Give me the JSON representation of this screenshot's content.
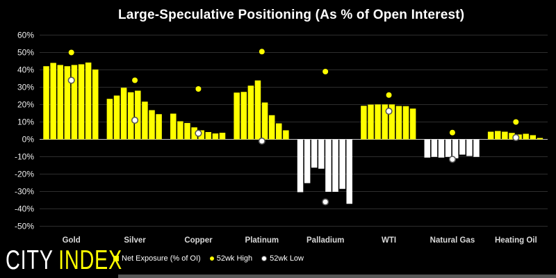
{
  "title": "Large-Speculative Positioning (As % of Open Interest)",
  "logo": {
    "city": "CITY",
    "index": "INDEX"
  },
  "legend": [
    {
      "label": "Net Exposure (% of OI)",
      "marker": "square",
      "color": "#ffff00"
    },
    {
      "label": "52wk High",
      "marker": "circle",
      "color": "#ffff00"
    },
    {
      "label": "52wk Low",
      "marker": "circle",
      "color": "#ffffff"
    }
  ],
  "colors": {
    "background": "#000000",
    "bar_positive": "#ffff00",
    "bar_negative": "#ffffff",
    "high_marker": "#ffff00",
    "low_marker_fill": "#ffffff",
    "low_marker_ring": "#555555",
    "grid": "#2e2e2e",
    "zero_line": "#c8c8c8",
    "tick_text": "#ededed",
    "category_text": "#d9d9d9"
  },
  "chart_data": {
    "type": "bar",
    "title": "Large-Speculative Positioning (As % of Open Interest)",
    "xlabel": "",
    "ylabel": "",
    "ylim": [
      -50,
      60
    ],
    "grid": true,
    "legend_position": "bottom",
    "bars_per_group": 8,
    "y_ticks": [
      {
        "label": "60%",
        "value": 60
      },
      {
        "label": "50%",
        "value": 50
      },
      {
        "label": "40%",
        "value": 40
      },
      {
        "label": "30%",
        "value": 30
      },
      {
        "label": "20%",
        "value": 20
      },
      {
        "label": "10%",
        "value": 10
      },
      {
        "label": "0%",
        "value": 0
      },
      {
        "label": "-10%",
        "value": -10
      },
      {
        "label": "-20%",
        "value": -20
      },
      {
        "label": "-30%",
        "value": -30
      },
      {
        "label": "-40%",
        "value": -40
      },
      {
        "label": "-50%",
        "value": -50
      }
    ],
    "groups": [
      {
        "category": "Gold",
        "net_exposure_pct": [
          42.1,
          44.0,
          42.8,
          42.1,
          42.8,
          43.2,
          44.2,
          40.2
        ],
        "high_52wk": 50,
        "low_52wk": 34
      },
      {
        "category": "Silver",
        "net_exposure_pct": [
          23.3,
          25.2,
          29.7,
          27.1,
          28.0,
          21.7,
          16.8,
          14.5
        ],
        "high_52wk": 34,
        "low_52wk": 11
      },
      {
        "category": "Copper",
        "net_exposure_pct": [
          14.8,
          10.4,
          9.4,
          6.9,
          5.2,
          4.2,
          3.4,
          3.8
        ],
        "high_52wk": 29,
        "low_52wk": 3.5
      },
      {
        "category": "Platinum",
        "net_exposure_pct": [
          26.9,
          27.3,
          30.9,
          33.9,
          21.2,
          13.9,
          9.2,
          5.2
        ],
        "high_52wk": 50.5,
        "low_52wk": -1
      },
      {
        "category": "Palladium",
        "net_exposure_pct": [
          -30.4,
          -25.2,
          -16.3,
          -16.9,
          -30.2,
          -30.2,
          -28.5,
          -37.1
        ],
        "high_52wk": 39,
        "low_52wk": -36
      },
      {
        "category": "WTI",
        "net_exposure_pct": [
          19.3,
          20.0,
          20.1,
          20.1,
          20.1,
          19.2,
          19.1,
          17.7
        ],
        "high_52wk": 25.5,
        "low_52wk": 16.2
      },
      {
        "category": "Natural Gas",
        "net_exposure_pct": [
          -10.5,
          -10.1,
          -10.5,
          -10.1,
          -10.9,
          -8.8,
          -9.6,
          -10.1
        ],
        "high_52wk": 3.9,
        "low_52wk": -11.5
      },
      {
        "category": "Heating Oil",
        "net_exposure_pct": [
          4.4,
          4.8,
          4.4,
          3.7,
          2.8,
          3.2,
          2.4,
          0.8
        ],
        "high_52wk": 10,
        "low_52wk": 1.0
      }
    ]
  }
}
